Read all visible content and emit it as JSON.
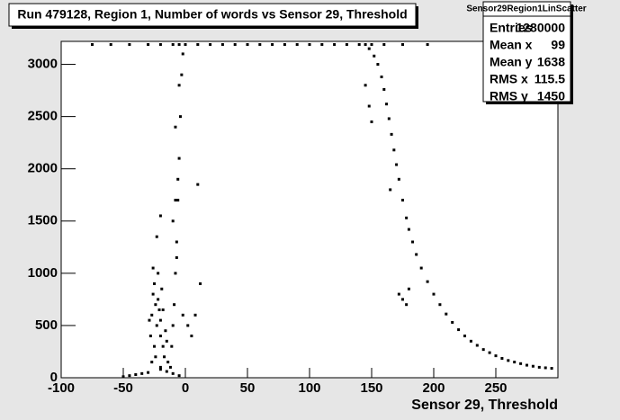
{
  "chart_data": {
    "type": "scatter",
    "title": "Run 479128, Region 1, Number of words vs Sensor 29, Threshold",
    "x_label": "Sensor 29, Threshold",
    "color": "#000000",
    "xlim": [
      -100,
      300
    ],
    "ylim": [
      0,
      3220
    ],
    "xticks": [
      -100,
      -50,
      0,
      50,
      100,
      150,
      200,
      250
    ],
    "yticks": [
      0,
      500,
      1000,
      1500,
      2000,
      2500,
      3000
    ],
    "x": [
      -75,
      -60,
      -45,
      -30,
      -20,
      -10,
      -5,
      0,
      10,
      20,
      30,
      40,
      50,
      60,
      70,
      80,
      90,
      100,
      110,
      120,
      130,
      140,
      145,
      150,
      160,
      175,
      195,
      148,
      152,
      155,
      158,
      160,
      162,
      164,
      166,
      168,
      170,
      172,
      175,
      178,
      180,
      183,
      186,
      190,
      195,
      200,
      205,
      210,
      215,
      220,
      225,
      230,
      235,
      240,
      245,
      250,
      255,
      260,
      265,
      270,
      275,
      280,
      285,
      290,
      295,
      145,
      148,
      150,
      165,
      172,
      175,
      178,
      180,
      -12,
      -11,
      -10,
      -9,
      -8,
      -7,
      -6,
      -5,
      -4,
      -3,
      -2,
      -10,
      -8,
      -5,
      -6,
      -7,
      -8,
      -20,
      -23,
      -2,
      2,
      5,
      8,
      12,
      10,
      -28,
      -27,
      -26,
      -25,
      -24,
      -23,
      -22,
      -21,
      -20,
      -19,
      -18,
      -17,
      -16,
      -25,
      -29,
      -22,
      -20,
      -24,
      -27,
      -18,
      -15,
      -26,
      -50,
      -45,
      -40,
      -35,
      -30,
      -20,
      -15,
      -10,
      -5,
      -20,
      -14
    ],
    "y": [
      3190,
      3190,
      3190,
      3190,
      3190,
      3190,
      3190,
      3190,
      3190,
      3190,
      3190,
      3190,
      3190,
      3190,
      3190,
      3190,
      3190,
      3190,
      3190,
      3190,
      3190,
      3190,
      3190,
      3190,
      3190,
      3190,
      3190,
      3150,
      3080,
      3000,
      2880,
      2760,
      2620,
      2480,
      2330,
      2180,
      2040,
      1900,
      1700,
      1530,
      1420,
      1300,
      1180,
      1050,
      920,
      800,
      700,
      610,
      530,
      460,
      400,
      350,
      310,
      270,
      240,
      210,
      185,
      165,
      150,
      135,
      120,
      110,
      100,
      95,
      90,
      2800,
      2600,
      2450,
      1800,
      800,
      750,
      700,
      850,
      100,
      300,
      500,
      700,
      1000,
      1300,
      1700,
      2100,
      2500,
      2900,
      3100,
      1500,
      2400,
      2800,
      1900,
      1150,
      1700,
      1550,
      1350,
      600,
      500,
      400,
      600,
      900,
      1850,
      400,
      600,
      800,
      900,
      700,
      500,
      750,
      650,
      550,
      850,
      300,
      200,
      450,
      300,
      550,
      1000,
      400,
      200,
      150,
      650,
      350,
      1050,
      10,
      20,
      30,
      40,
      50,
      80,
      60,
      40,
      20,
      100,
      150
    ]
  },
  "stats": {
    "name": "Sensor29Region1LinScatter",
    "rows": [
      [
        "Entries",
        "1280000"
      ],
      [
        "Mean x",
        "99"
      ],
      [
        "Mean y",
        "1638"
      ],
      [
        "RMS x",
        "115.5"
      ],
      [
        "RMS y",
        "1450"
      ]
    ]
  }
}
